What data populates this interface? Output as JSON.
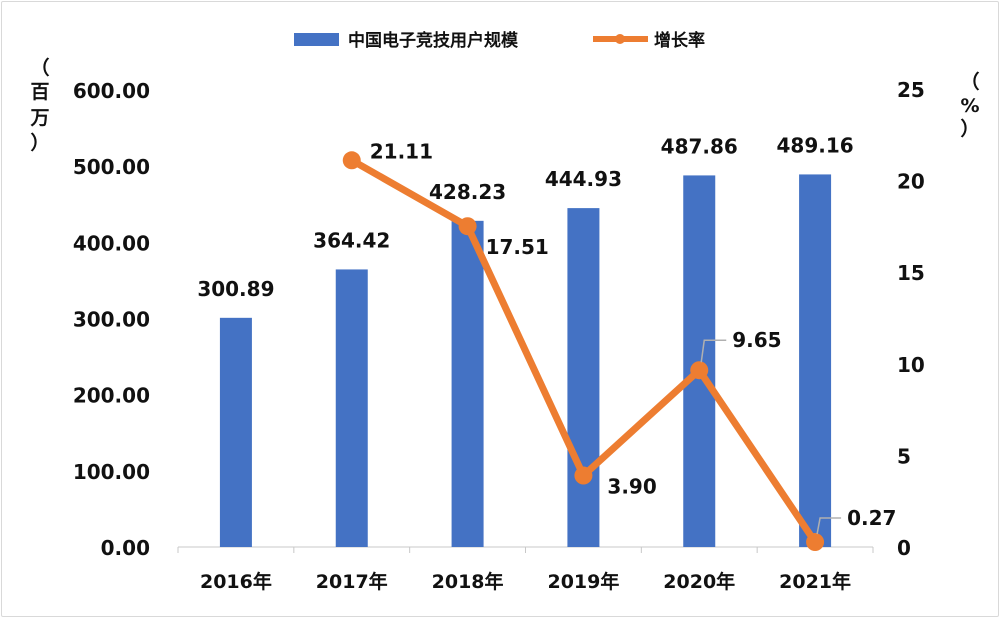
{
  "chart_data": {
    "type": "bar+line",
    "categories": [
      "2016年",
      "2017年",
      "2018年",
      "2019年",
      "2020年",
      "2021年"
    ],
    "series": [
      {
        "name": "中国电子竞技用户规模",
        "type": "bar",
        "axis": "left",
        "color": "#4472c4",
        "values": [
          300.89,
          364.42,
          428.23,
          444.93,
          487.86,
          489.16
        ],
        "labels": [
          "300.89",
          "364.42",
          "428.23",
          "444.93",
          "487.86",
          "489.16"
        ]
      },
      {
        "name": "增长率",
        "type": "line",
        "axis": "right",
        "color": "#ed7d31",
        "values": [
          null,
          21.11,
          17.51,
          3.9,
          9.65,
          0.27
        ],
        "labels": [
          "",
          "21.11",
          "17.51",
          "3.90",
          "9.65",
          "0.27"
        ]
      }
    ],
    "y_left": {
      "unit_chars": [
        "（",
        "百",
        "万",
        "）"
      ],
      "ylim": [
        0,
        600
      ],
      "ticks": [
        "0.00",
        "100.00",
        "200.00",
        "300.00",
        "400.00",
        "500.00",
        "600.00"
      ]
    },
    "y_right": {
      "unit_chars": [
        "（",
        "%",
        "）"
      ],
      "ylim": [
        0,
        25
      ],
      "ticks": [
        "0",
        "5",
        "10",
        "15",
        "20",
        "25"
      ]
    },
    "legend_position": "top-center",
    "grid": false
  }
}
